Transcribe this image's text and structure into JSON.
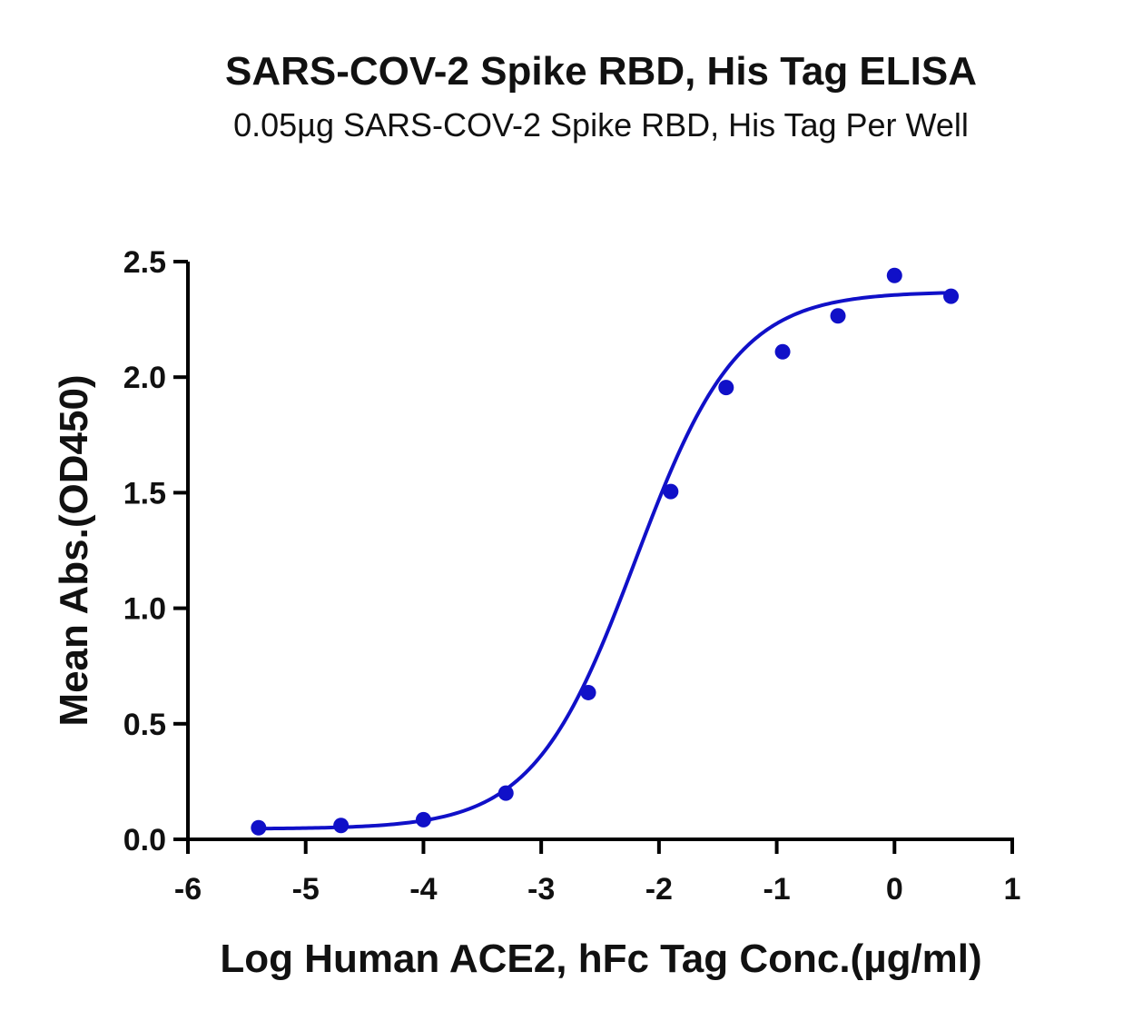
{
  "chart_data": {
    "type": "scatter",
    "title": "SARS-COV-2 Spike RBD, His Tag ELISA",
    "subtitle": "0.05µg SARS-COV-2 Spike RBD, His Tag Per Well",
    "xlabel": "Log Human ACE2, hFc Tag Conc.(µg/ml)",
    "ylabel": "Mean Abs.(OD450)",
    "xlim": [
      -6,
      1
    ],
    "ylim": [
      0,
      2.5
    ],
    "xticks": [
      -6,
      -5,
      -4,
      -3,
      -2,
      -1,
      0,
      1
    ],
    "xtick_labels": [
      "-6",
      "-5",
      "-4",
      "-3",
      "-2",
      "-1",
      "0",
      "1"
    ],
    "yticks": [
      0,
      0.5,
      1.0,
      1.5,
      2.0,
      2.5
    ],
    "ytick_labels": [
      "0.0",
      "0.5",
      "1.0",
      "1.5",
      "2.0",
      "2.5"
    ],
    "grid": false,
    "series": [
      {
        "name": "Mean Abs.",
        "color": "#1010c8",
        "x": [
          -5.4,
          -4.7,
          -4.0,
          -3.3,
          -2.6,
          -1.9,
          -1.43,
          -0.95,
          -0.48,
          0.0,
          0.48
        ],
        "y": [
          0.05,
          0.06,
          0.085,
          0.2,
          0.635,
          1.505,
          1.955,
          2.11,
          2.265,
          2.44,
          2.35
        ],
        "fit": {
          "model": "4PL",
          "bottom": 0.045,
          "top": 2.37,
          "logEC50": -2.2,
          "hill": 1.0,
          "range": [
            -5.4,
            0.48
          ]
        }
      }
    ]
  }
}
